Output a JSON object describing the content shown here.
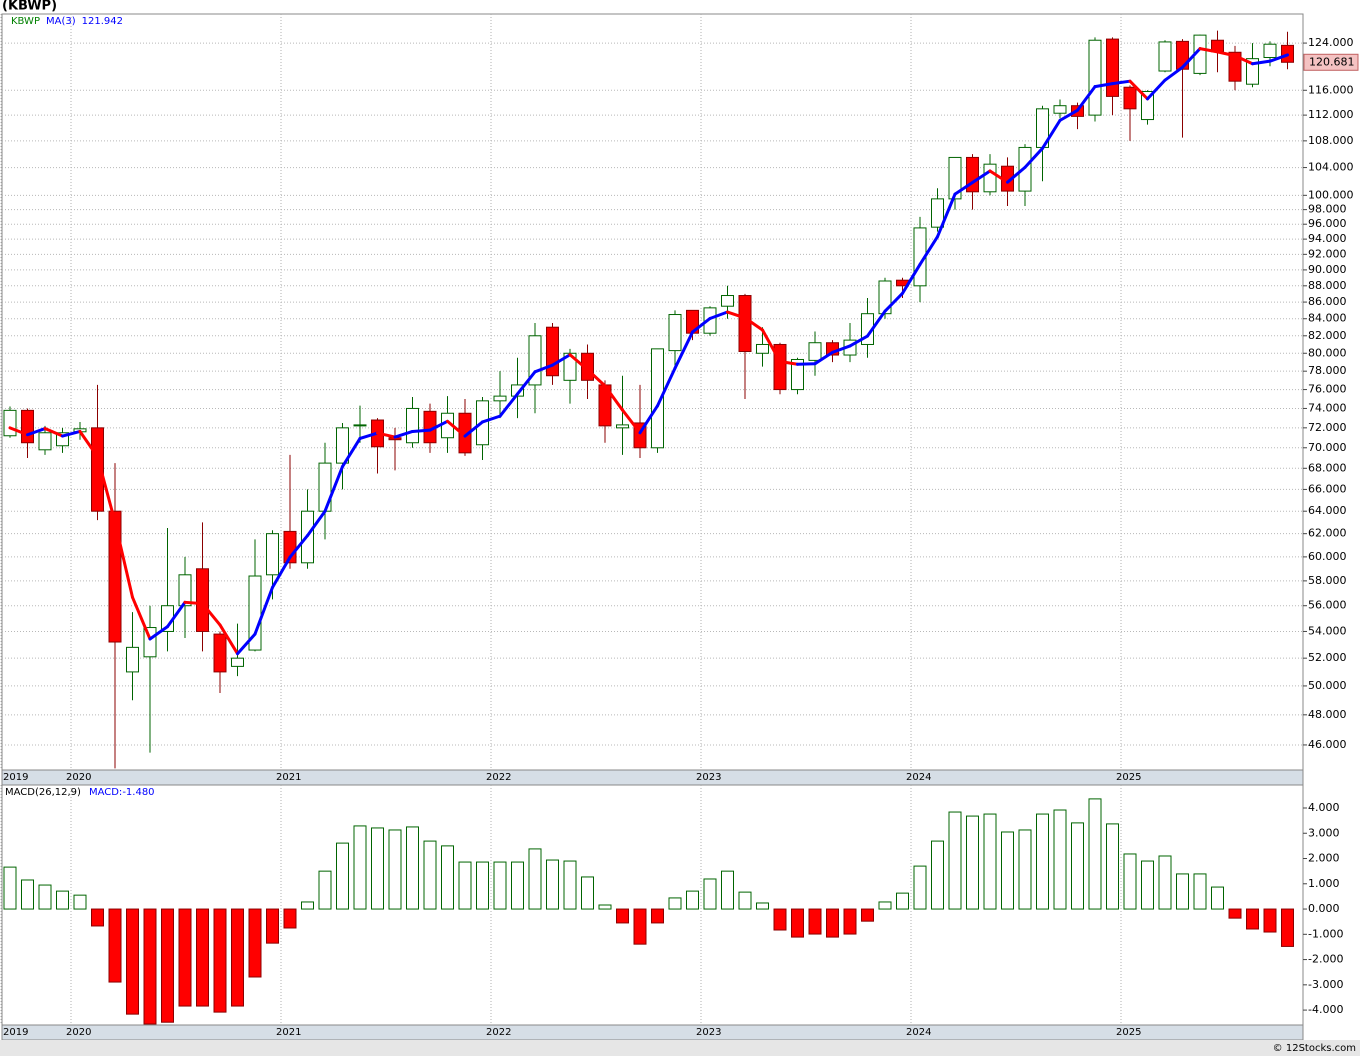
{
  "chart_data": [
    {
      "type": "candlestick",
      "title": "(KBWP)",
      "categories": [
        "2019",
        null,
        null,
        null,
        "2020",
        null,
        null,
        null,
        null,
        null,
        null,
        null,
        null,
        null,
        null,
        null,
        "2021",
        null,
        null,
        null,
        null,
        null,
        null,
        null,
        null,
        null,
        null,
        null,
        "2022",
        null,
        null,
        null,
        null,
        null,
        null,
        null,
        null,
        null,
        null,
        null,
        "2023",
        null,
        null,
        null,
        null,
        null,
        null,
        null,
        null,
        null,
        null,
        null,
        "2024",
        null,
        null,
        null,
        null,
        null,
        null,
        null,
        null,
        null,
        null,
        null,
        "2025",
        null,
        null,
        null,
        null,
        null,
        null,
        null,
        null,
        null
      ],
      "series": [
        {
          "name": "KBWP",
          "legend_color": "#008000",
          "up_color": "#006400",
          "down_color": "#ff0000",
          "down_edge": "#8b0000",
          "open": [
            71.2,
            73.8,
            69.8,
            70.2,
            71.6,
            72.0,
            64.0,
            51.0,
            52.1,
            54.0,
            56.0,
            59.0,
            53.8,
            51.4,
            52.6,
            58.5,
            62.2,
            59.5,
            64.0,
            68.5,
            72.2,
            72.8,
            71.0,
            70.5,
            73.7,
            71.0,
            73.5,
            70.3,
            74.8,
            75.3,
            76.5,
            83.0,
            77.0,
            80.0,
            76.5,
            72.0,
            72.5,
            70.0,
            80.3,
            85.0,
            82.3,
            85.5,
            86.8,
            80.0,
            81.0,
            76.0,
            79.2,
            81.2,
            79.8,
            81.0,
            84.6,
            88.7,
            88.0,
            95.6,
            99.5,
            105.5,
            100.5,
            104.2,
            100.6,
            107.0,
            112.3,
            113.5,
            112.0,
            124.7,
            116.5,
            111.3,
            119.2,
            124.3,
            118.8,
            124.5,
            122.4,
            117.0,
            121.5,
            123.6
          ],
          "high": [
            74.2,
            74.0,
            72.2,
            72.0,
            72.6,
            76.5,
            68.5,
            55.5,
            56.0,
            62.5,
            60.0,
            63.0,
            54.0,
            54.6,
            61.5,
            62.3,
            69.3,
            66.0,
            70.5,
            72.5,
            74.3,
            73.0,
            72.0,
            75.2,
            74.5,
            75.3,
            75.0,
            75.2,
            78.0,
            79.5,
            83.5,
            83.5,
            80.5,
            81.0,
            77.0,
            77.5,
            76.5,
            80.5,
            85.0,
            85.0,
            85.5,
            88.0,
            87.0,
            83.0,
            81.2,
            79.5,
            82.5,
            81.5,
            83.5,
            86.5,
            89.0,
            89.0,
            97.0,
            101.0,
            105.5,
            106.0,
            106.0,
            105.5,
            107.5,
            113.5,
            114.5,
            114.0,
            125.0,
            125.0,
            116.8,
            116.0,
            124.5,
            124.7,
            125.5,
            126.2,
            123.5,
            124.0,
            124.3,
            126.0
          ],
          "low": [
            71.0,
            69.0,
            69.3,
            69.5,
            70.8,
            63.2,
            44.5,
            49.0,
            45.5,
            52.5,
            53.5,
            52.5,
            49.5,
            50.7,
            52.5,
            56.5,
            59.0,
            59.0,
            61.5,
            66.0,
            70.5,
            67.5,
            67.8,
            70.0,
            69.5,
            69.5,
            69.2,
            68.8,
            73.0,
            73.0,
            73.5,
            76.5,
            74.5,
            75.0,
            70.5,
            69.3,
            69.0,
            69.5,
            78.5,
            81.5,
            82.0,
            84.0,
            75.0,
            78.5,
            75.5,
            75.5,
            77.5,
            79.0,
            79.0,
            79.5,
            84.0,
            86.5,
            86.0,
            95.0,
            98.0,
            98.0,
            100.0,
            98.5,
            98.5,
            102.0,
            111.5,
            109.8,
            111.0,
            112.0,
            108.0,
            110.5,
            119.0,
            108.5,
            118.5,
            119.0,
            116.0,
            116.5,
            120.0,
            119.5
          ],
          "close": [
            73.8,
            70.5,
            71.5,
            71.5,
            71.9,
            64.0,
            53.2,
            52.8,
            54.3,
            56.0,
            58.5,
            54.0,
            51.0,
            52.0,
            58.4,
            62.0,
            59.5,
            64.0,
            68.5,
            72.0,
            72.3,
            70.1,
            70.8,
            74.0,
            70.5,
            73.5,
            69.5,
            74.8,
            75.3,
            76.5,
            82.0,
            77.5,
            80.0,
            77.0,
            72.2,
            72.3,
            70.0,
            80.5,
            84.5,
            82.3,
            85.3,
            86.8,
            80.2,
            81.0,
            76.0,
            79.3,
            81.2,
            79.8,
            81.5,
            84.6,
            88.6,
            88.0,
            95.5,
            99.5,
            105.5,
            100.5,
            104.5,
            100.6,
            107.0,
            113.0,
            113.5,
            111.8,
            124.5,
            115.0,
            113.0,
            115.8,
            124.2,
            119.5,
            125.4,
            122.5,
            117.5,
            121.3,
            123.8,
            120.681
          ]
        },
        {
          "name": "MA(3)",
          "legend_color": "#0000ff",
          "up_color": "#0000ff",
          "down_color": "#ff0000",
          "values": [
            72.0,
            71.3,
            71.93,
            71.17,
            71.63,
            69.13,
            63.03,
            56.67,
            53.43,
            54.37,
            56.27,
            56.17,
            54.5,
            52.33,
            53.8,
            57.47,
            59.97,
            61.83,
            64.0,
            68.17,
            70.93,
            71.47,
            71.07,
            71.63,
            71.77,
            72.67,
            71.17,
            72.6,
            73.2,
            75.53,
            77.93,
            78.67,
            79.83,
            78.17,
            76.4,
            73.83,
            71.5,
            74.27,
            78.33,
            82.43,
            84.03,
            84.8,
            84.1,
            82.67,
            79.07,
            78.77,
            78.83,
            80.1,
            80.83,
            81.97,
            84.9,
            87.07,
            90.7,
            94.33,
            100.17,
            101.83,
            103.5,
            101.87,
            104.03,
            106.87,
            111.17,
            112.77,
            116.6,
            117.1,
            117.5,
            114.6,
            117.67,
            119.83,
            123.03,
            122.47,
            121.8,
            120.43,
            120.87,
            121.942
          ]
        }
      ],
      "log_scale": true,
      "grid": true,
      "tag_color": "#f4c2c2",
      "ylim": [
        44.4,
        129.2
      ],
      "yticks": [
        {
          "value": 46,
          "label": "46.000"
        },
        {
          "value": 48,
          "label": "48.000"
        },
        {
          "value": 50,
          "label": "50.000"
        },
        {
          "value": 52,
          "label": "52.000"
        },
        {
          "value": 54,
          "label": "54.000"
        },
        {
          "value": 56,
          "label": "56.000"
        },
        {
          "value": 58,
          "label": "58.000"
        },
        {
          "value": 60,
          "label": "60.000"
        },
        {
          "value": 62,
          "label": "62.000"
        },
        {
          "value": 64,
          "label": "64.000"
        },
        {
          "value": 66,
          "label": "66.000"
        },
        {
          "value": 68,
          "label": "68.000"
        },
        {
          "value": 70,
          "label": "70.000"
        },
        {
          "value": 72,
          "label": "72.000"
        },
        {
          "value": 74,
          "label": "74.000"
        },
        {
          "value": 76,
          "label": "76.000"
        },
        {
          "value": 78,
          "label": "78.000"
        },
        {
          "value": 80,
          "label": "80.000"
        },
        {
          "value": 82,
          "label": "82.000"
        },
        {
          "value": 84,
          "label": "84.000"
        },
        {
          "value": 86,
          "label": "86.000"
        },
        {
          "value": 88,
          "label": "88.000"
        },
        {
          "value": 90,
          "label": "90.000"
        },
        {
          "value": 92,
          "label": "92.000"
        },
        {
          "value": 94,
          "label": "94.000"
        },
        {
          "value": 96,
          "label": "96.000"
        },
        {
          "value": 98,
          "label": "98.000"
        },
        {
          "value": 100,
          "label": "100.000"
        },
        {
          "value": 104,
          "label": "104.000"
        },
        {
          "value": 108,
          "label": "108.000"
        },
        {
          "value": 112,
          "label": "112.000"
        },
        {
          "value": 116,
          "label": "116.000"
        },
        {
          "value": 124,
          "label": "124.000"
        }
      ]
    },
    {
      "type": "bar",
      "series": [
        {
          "name": "MACD(26,12,9)",
          "up_color": "#006400",
          "down_color": "#ff0000",
          "values": [
            1.66,
            1.15,
            0.95,
            0.71,
            0.55,
            -0.67,
            -2.89,
            -4.16,
            -4.55,
            -4.48,
            -3.84,
            -3.84,
            -4.08,
            -3.84,
            -2.69,
            -1.35,
            -0.75,
            0.28,
            1.5,
            2.61,
            3.29,
            3.21,
            3.13,
            3.25,
            2.69,
            2.5,
            1.86,
            1.86,
            1.86,
            1.86,
            2.38,
            1.94,
            1.9,
            1.27,
            0.16,
            -0.55,
            -1.39,
            -0.55,
            0.44,
            0.71,
            1.19,
            1.5,
            0.67,
            0.24,
            -0.83,
            -1.11,
            -0.99,
            -1.11,
            -0.99,
            -0.48,
            0.28,
            0.63,
            1.7,
            2.69,
            3.84,
            3.68,
            3.76,
            3.05,
            3.13,
            3.76,
            3.92,
            3.41,
            4.36,
            3.37,
            2.18,
            1.9,
            2.1,
            1.39,
            1.39,
            0.87,
            -0.36,
            -0.79,
            -0.91,
            -1.48
          ]
        }
      ],
      "readout": {
        "prefix": "MACD:",
        "label": "-1.480",
        "color": "#0000ff"
      },
      "ylim": [
        -4.59,
        4.91
      ],
      "yticks": [
        {
          "value": 4,
          "label": "4.000"
        },
        {
          "value": 3,
          "label": "3.000"
        },
        {
          "value": 2,
          "label": "2.000"
        },
        {
          "value": 1,
          "label": "1.000"
        },
        {
          "value": 0,
          "label": "0.000"
        },
        {
          "value": -1,
          "label": "-1.000"
        },
        {
          "value": -2,
          "label": "-2.000"
        },
        {
          "value": -3,
          "label": "-3.000"
        },
        {
          "value": -4,
          "label": "-4.000"
        }
      ]
    }
  ],
  "footer": "© 12Stocks.com"
}
